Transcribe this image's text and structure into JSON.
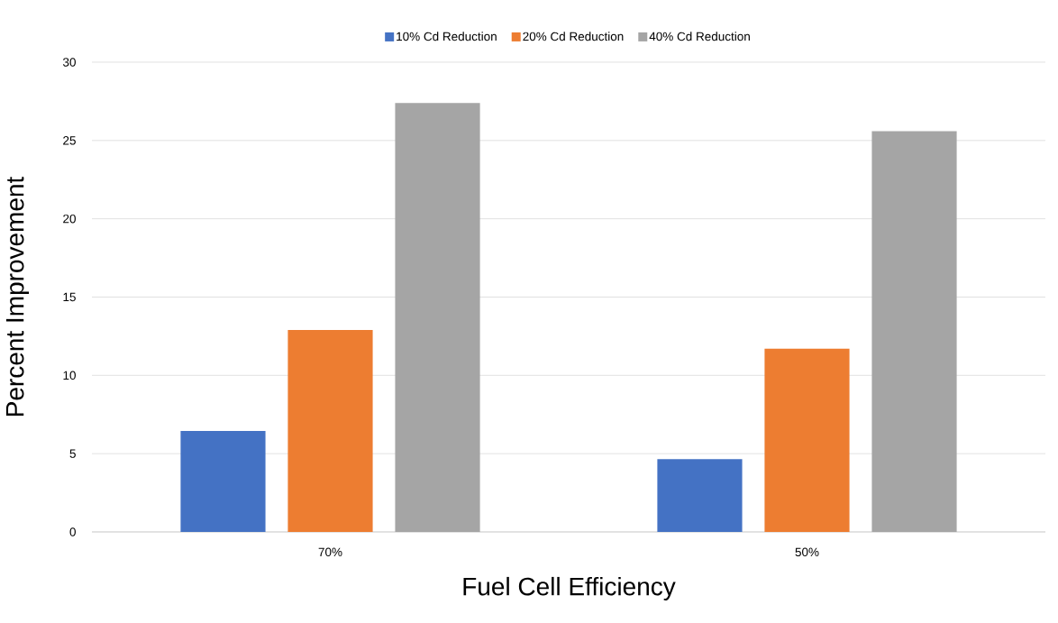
{
  "chart_data": {
    "type": "bar",
    "xlabel": "Fuel Cell Efficiency",
    "ylabel": "Percent Improvement",
    "categories": [
      "70%",
      "50%"
    ],
    "series": [
      {
        "name": "10% Cd Reduction",
        "color": "#4472c4",
        "values": [
          6.45,
          4.65
        ]
      },
      {
        "name": "20% Cd Reduction",
        "color": "#ed7d31",
        "values": [
          12.9,
          11.7
        ]
      },
      {
        "name": "40% Cd Reduction",
        "color": "#a5a5a5",
        "values": [
          27.4,
          25.6
        ]
      }
    ],
    "ylim": [
      0,
      30
    ],
    "yticks": [
      0,
      5,
      10,
      15,
      20,
      25,
      30
    ],
    "grid": "y",
    "legend": "top"
  }
}
